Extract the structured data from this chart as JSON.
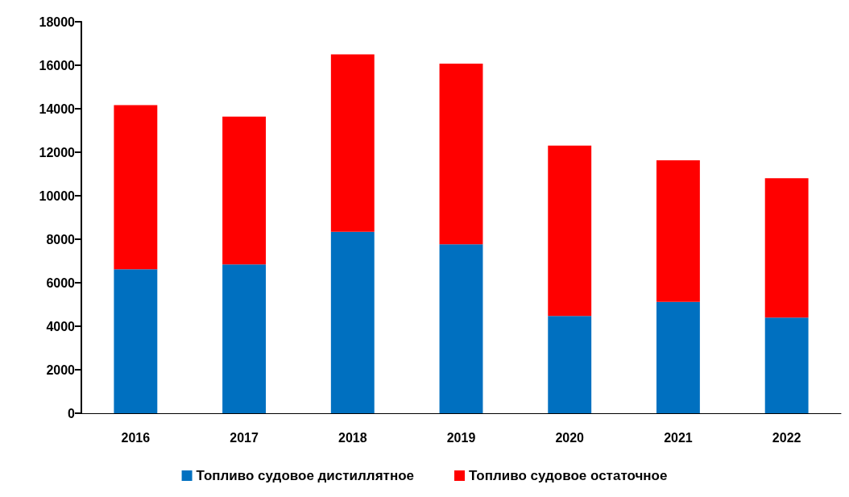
{
  "chart_data": {
    "type": "bar",
    "stacked": true,
    "categories": [
      "2016",
      "2017",
      "2018",
      "2019",
      "2020",
      "2021",
      "2022"
    ],
    "series": [
      {
        "name": "Топливо судовое дистиллятное",
        "color": "#0070c0",
        "values": [
          6620,
          6840,
          8340,
          7770,
          4470,
          5120,
          4400
        ]
      },
      {
        "name": "Топливо судовое остаточное",
        "color": "#ff0000",
        "values": [
          7550,
          6800,
          8160,
          8300,
          7840,
          6510,
          6410
        ]
      }
    ],
    "ylim": [
      0,
      18000
    ],
    "yticks": [
      0,
      2000,
      4000,
      6000,
      8000,
      10000,
      12000,
      14000,
      16000,
      18000
    ],
    "grid": false,
    "legend": "bottom"
  }
}
